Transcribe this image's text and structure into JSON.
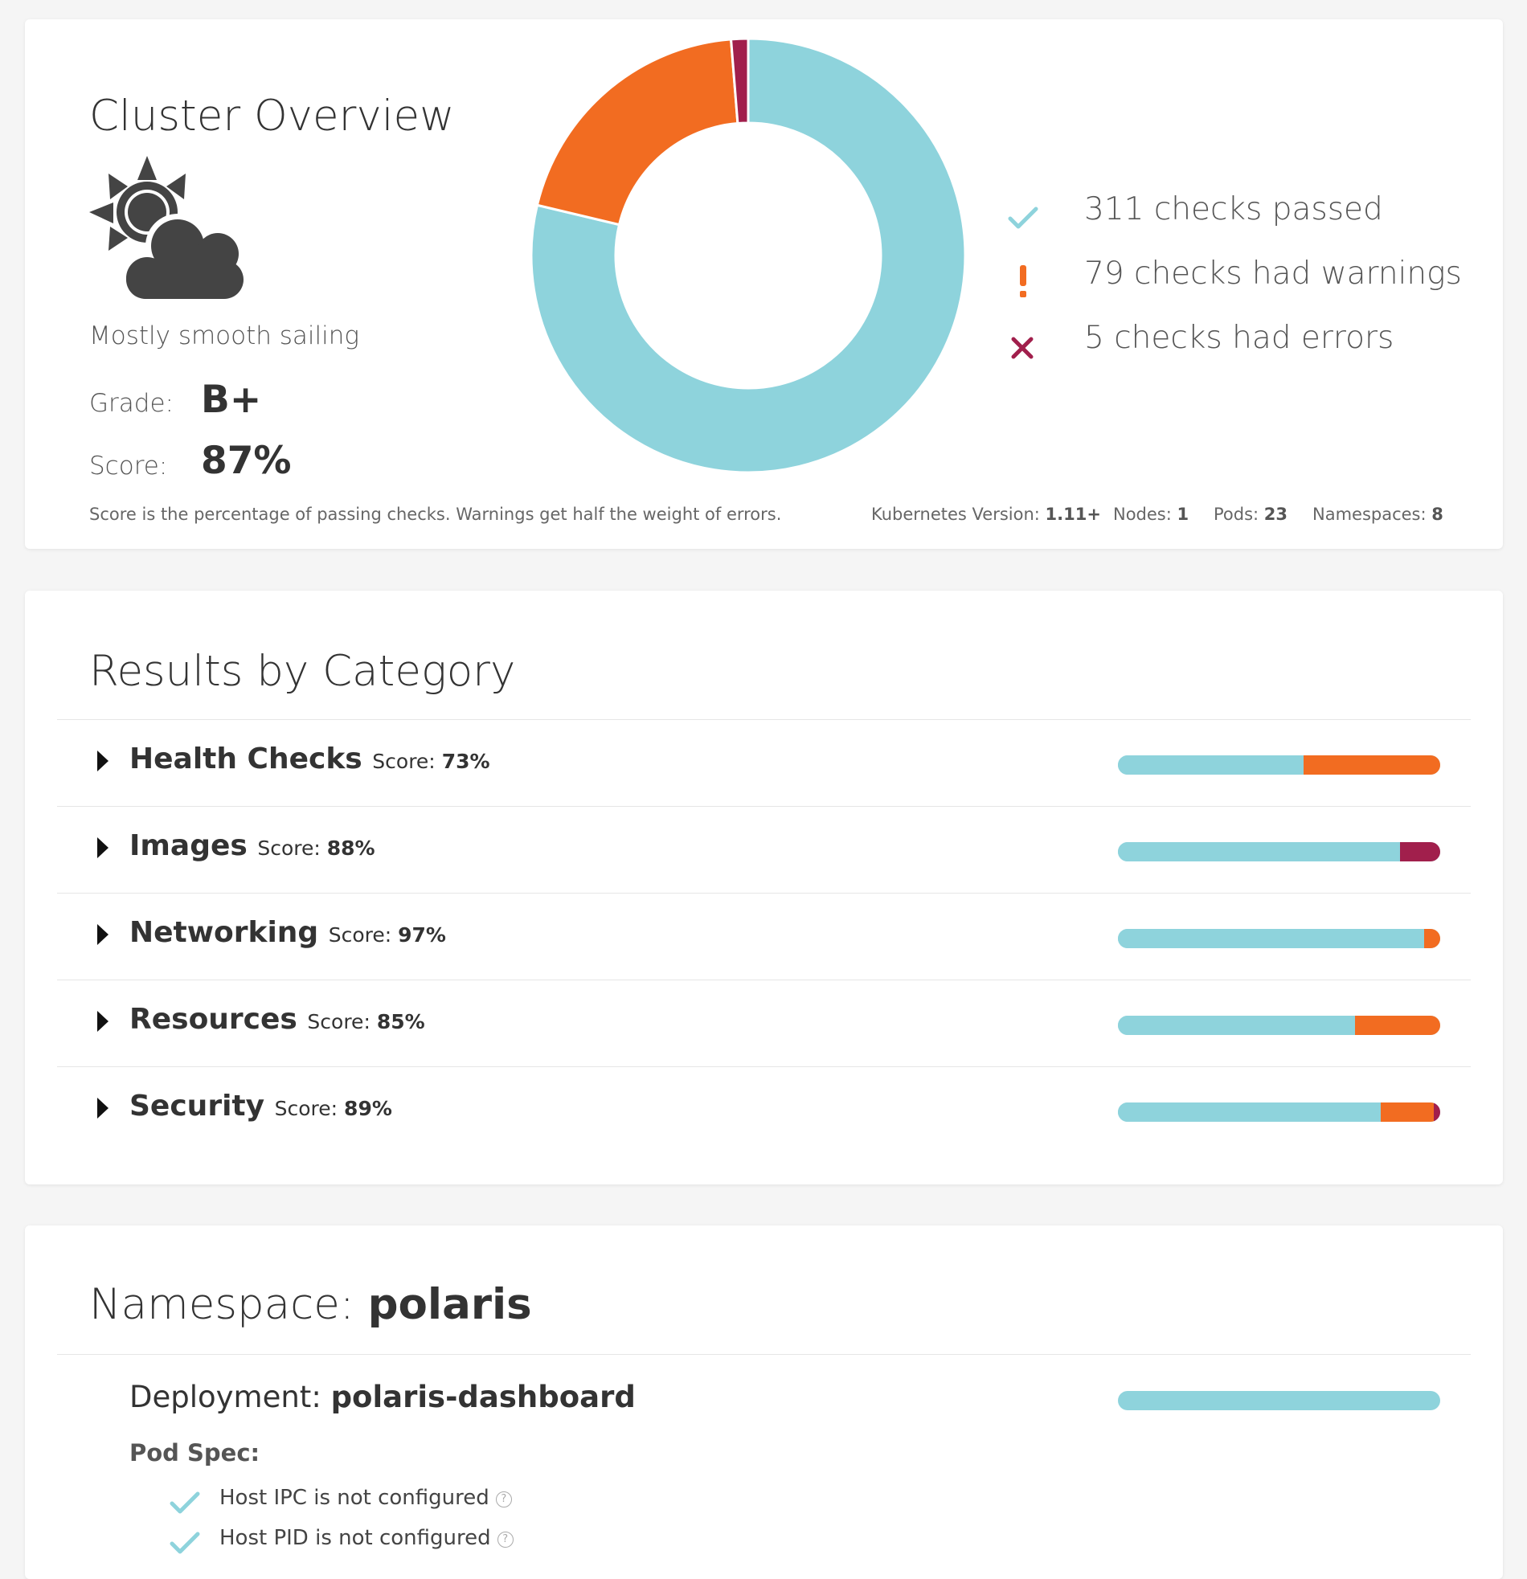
{
  "overview": {
    "title": "Cluster Overview",
    "weather_icon": "partly-cloudy-icon",
    "weather_text": "Mostly smooth sailing",
    "grade_label": "Grade:",
    "grade": "B+",
    "score_label": "Score:",
    "score": "87%",
    "donut": {
      "passed": 311,
      "warnings": 79,
      "errors": 5,
      "colors": {
        "passed": "#8ed3dc",
        "warnings": "#f26c21",
        "errors": "#a11f4c"
      }
    },
    "legend": [
      {
        "icon": "check-icon",
        "text": "311 checks passed",
        "color": "#8ed3dc"
      },
      {
        "icon": "exclamation-icon",
        "text": "79 checks had warnings",
        "color": "#f26c21"
      },
      {
        "icon": "x-icon",
        "text": "5 checks had errors",
        "color": "#a11f4c"
      }
    ],
    "footnote": "Score is the percentage of passing checks. Warnings get half the weight of errors.",
    "meta": [
      {
        "label": "Kubernetes Version:",
        "value": "1.11+"
      },
      {
        "label": "Nodes:",
        "value": "1"
      },
      {
        "label": "Pods:",
        "value": "23"
      },
      {
        "label": "Namespaces:",
        "value": "8"
      }
    ]
  },
  "categories": {
    "title": "Results by Category",
    "score_label": "Score:",
    "items": [
      {
        "name": "Health Checks",
        "score": "73%",
        "bar": {
          "pass": 0.575,
          "warn": 0.425,
          "error": 0.0
        }
      },
      {
        "name": "Images",
        "score": "88%",
        "bar": {
          "pass": 0.875,
          "warn": 0.0,
          "error": 0.125
        }
      },
      {
        "name": "Networking",
        "score": "97%",
        "bar": {
          "pass": 0.95,
          "warn": 0.05,
          "error": 0.0
        }
      },
      {
        "name": "Resources",
        "score": "85%",
        "bar": {
          "pass": 0.735,
          "warn": 0.265,
          "error": 0.0
        }
      },
      {
        "name": "Security",
        "score": "89%",
        "bar": {
          "pass": 0.815,
          "warn": 0.165,
          "error": 0.02
        }
      }
    ]
  },
  "namespace": {
    "title_prefix": "Namespace:",
    "name": "polaris",
    "deployment_label": "Deployment:",
    "deployment_name": "polaris-dashboard",
    "deployment_bar": {
      "pass": 1.0,
      "warn": 0.0,
      "error": 0.0
    },
    "pod_spec_label": "Pod Spec:",
    "checks": [
      {
        "icon": "check-icon",
        "text": "Host IPC is not configured",
        "help_icon": "help-icon"
      },
      {
        "icon": "check-icon",
        "text": "Host PID is not configured",
        "help_icon": "help-icon"
      }
    ]
  }
}
